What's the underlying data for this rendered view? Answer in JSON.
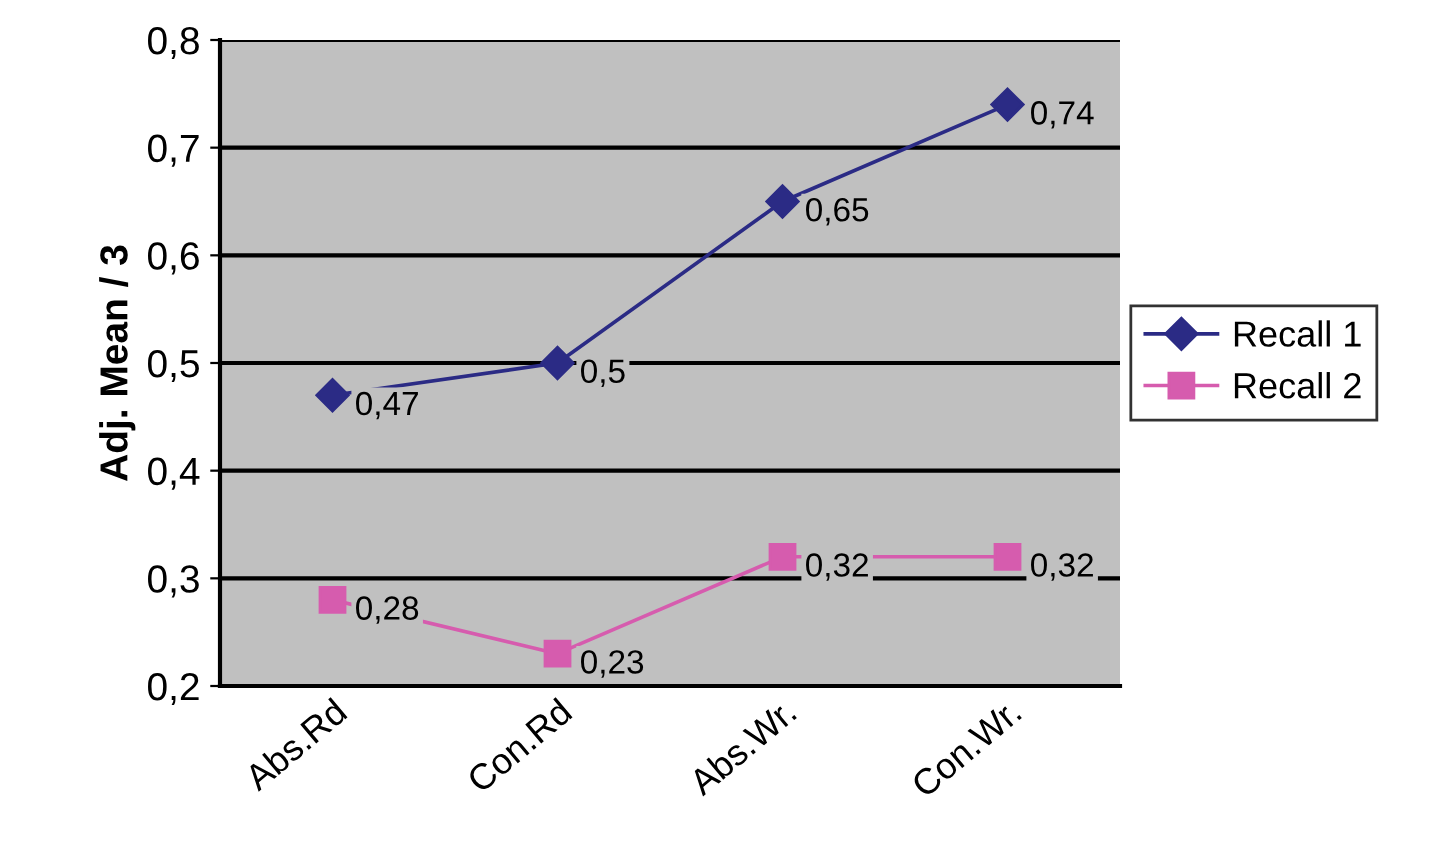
{
  "chart_data": {
    "type": "line",
    "ylabel": "Adj. Mean / 3",
    "categories": [
      "Abs.Rd",
      "Con.Rd",
      "Abs.Wr.",
      "Con.Wr."
    ],
    "series": [
      {
        "name": "Recall 1",
        "color": "#2b2b85",
        "marker": "diamond",
        "values": [
          0.47,
          0.5,
          0.65,
          0.74
        ],
        "value_labels": [
          "0,47",
          "0,5",
          "0,65",
          "0,74"
        ]
      },
      {
        "name": "Recall 2",
        "color": "#d65cae",
        "marker": "square",
        "values": [
          0.28,
          0.23,
          0.32,
          0.32
        ],
        "value_labels": [
          "0,28",
          "0,23",
          "0,32",
          "0,32"
        ]
      }
    ],
    "ylim": [
      0.2,
      0.8
    ],
    "yticks": [
      {
        "value": 0.2,
        "label": "0,2"
      },
      {
        "value": 0.3,
        "label": "0,3"
      },
      {
        "value": 0.4,
        "label": "0,4"
      },
      {
        "value": 0.5,
        "label": "0,5"
      },
      {
        "value": 0.6,
        "label": "0,6"
      },
      {
        "value": 0.7,
        "label": "0,7"
      },
      {
        "value": 0.8,
        "label": "0,8"
      }
    ],
    "grid": "y",
    "legend": "right"
  }
}
